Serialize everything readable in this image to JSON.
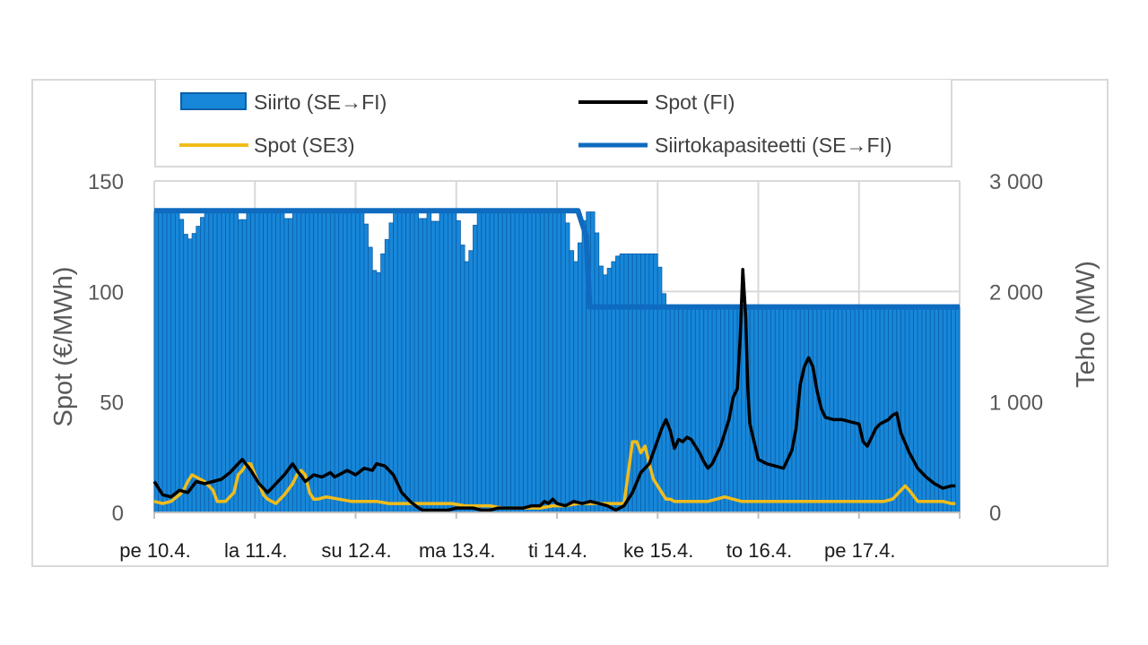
{
  "chart_data": {
    "type": "bar",
    "title": "",
    "ylabel_left": "Spot (€/MWh)",
    "ylabel_right": "Teho (MW)",
    "ylim_left": [
      0,
      150
    ],
    "ylim_right": [
      0,
      3000
    ],
    "yticks_left": [
      "0",
      "50",
      "100",
      "150"
    ],
    "yticks_right": [
      "0",
      "1 000",
      "2 000",
      "3 000"
    ],
    "xlim_hours": [
      0,
      192
    ],
    "x_categories": [
      "pe 10.4.",
      "la 11.4.",
      "su 12.4.",
      "ma 13.4.",
      "ti 14.4.",
      "ke 15.4.",
      "to 16.4.",
      "pe 17.4."
    ],
    "grid": true,
    "legend_position": "top",
    "colors": {
      "transfer_fill": "#1787d9",
      "transfer_edge": "#0b5fa8",
      "capacity": "#0e6bbf",
      "spot_fi": "#000000",
      "spot_se3": "#f2bc1a",
      "grid": "#d9d9d9"
    },
    "series": [
      {
        "name": "Siirto (SE→FI)",
        "axis": "right",
        "kind": "bar",
        "points": [
          [
            0,
            2720
          ],
          [
            6,
            2720
          ],
          [
            8,
            2450
          ],
          [
            10,
            2550
          ],
          [
            12,
            2710
          ],
          [
            20,
            2720
          ],
          [
            21,
            2580
          ],
          [
            22,
            2720
          ],
          [
            31,
            2720
          ],
          [
            32,
            2600
          ],
          [
            33,
            2720
          ],
          [
            50,
            2720
          ],
          [
            51,
            2500
          ],
          [
            52,
            2300
          ],
          [
            53,
            2080
          ],
          [
            54,
            2260
          ],
          [
            55,
            2420
          ],
          [
            56,
            2520
          ],
          [
            57,
            2720
          ],
          [
            63,
            2720
          ],
          [
            64,
            2600
          ],
          [
            65,
            2720
          ],
          [
            66,
            2720
          ],
          [
            67,
            2550
          ],
          [
            68,
            2720
          ],
          [
            72,
            2720
          ],
          [
            73,
            2560
          ],
          [
            74,
            2280
          ],
          [
            75,
            2260
          ],
          [
            76,
            2480
          ],
          [
            77,
            2720
          ],
          [
            98,
            2720
          ],
          [
            99,
            2520
          ],
          [
            100,
            2220
          ],
          [
            101,
            2320
          ],
          [
            102,
            2560
          ],
          [
            103,
            2720
          ],
          [
            105,
            2720
          ],
          [
            106,
            2340
          ],
          [
            107,
            2120
          ],
          [
            110,
            2300
          ],
          [
            111,
            2340
          ],
          [
            120,
            2340
          ],
          [
            122,
            1860
          ],
          [
            192,
            1860
          ]
        ]
      },
      {
        "name": "Siirtokapasiteetti (SE→FI)",
        "axis": "right",
        "kind": "line",
        "points": [
          [
            0,
            2730
          ],
          [
            101,
            2730
          ],
          [
            103,
            2500
          ],
          [
            103.8,
            1860
          ],
          [
            192,
            1860
          ]
        ]
      },
      {
        "name": "Spot (FI)",
        "axis": "left",
        "kind": "line",
        "points": [
          [
            0,
            14
          ],
          [
            2,
            8
          ],
          [
            4,
            7
          ],
          [
            6,
            10
          ],
          [
            8,
            9
          ],
          [
            10,
            14
          ],
          [
            12,
            13
          ],
          [
            14,
            14
          ],
          [
            16,
            15
          ],
          [
            18,
            18
          ],
          [
            20,
            22
          ],
          [
            21,
            24
          ],
          [
            23,
            19
          ],
          [
            25,
            13
          ],
          [
            27,
            9
          ],
          [
            29,
            13
          ],
          [
            31,
            17
          ],
          [
            33,
            22
          ],
          [
            34,
            19
          ],
          [
            36,
            14
          ],
          [
            38,
            17
          ],
          [
            40,
            16
          ],
          [
            42,
            18
          ],
          [
            43,
            16
          ],
          [
            44,
            17
          ],
          [
            46,
            19
          ],
          [
            48,
            17
          ],
          [
            50,
            20
          ],
          [
            52,
            19
          ],
          [
            53,
            22
          ],
          [
            55,
            21
          ],
          [
            57,
            17
          ],
          [
            58,
            13
          ],
          [
            59,
            9
          ],
          [
            61,
            5
          ],
          [
            63,
            2
          ],
          [
            64,
            1
          ],
          [
            66,
            1
          ],
          [
            68,
            1
          ],
          [
            70,
            1
          ],
          [
            72,
            2
          ],
          [
            74,
            2
          ],
          [
            76,
            2
          ],
          [
            78,
            1
          ],
          [
            80,
            1
          ],
          [
            82,
            2
          ],
          [
            84,
            2
          ],
          [
            86,
            2
          ],
          [
            88,
            2
          ],
          [
            90,
            3
          ],
          [
            92,
            3
          ],
          [
            93,
            5
          ],
          [
            94,
            4
          ],
          [
            95,
            6
          ],
          [
            96,
            4
          ],
          [
            98,
            3
          ],
          [
            100,
            5
          ],
          [
            102,
            4
          ],
          [
            104,
            5
          ],
          [
            106,
            4
          ],
          [
            108,
            3
          ],
          [
            110,
            1
          ],
          [
            112,
            3
          ],
          [
            114,
            9
          ],
          [
            116,
            18
          ],
          [
            118,
            22
          ],
          [
            121,
            38
          ],
          [
            122,
            42
          ],
          [
            123,
            37
          ],
          [
            124,
            29
          ],
          [
            125,
            33
          ],
          [
            126,
            32
          ],
          [
            127,
            34
          ],
          [
            128,
            33
          ],
          [
            129,
            30
          ],
          [
            130,
            27
          ],
          [
            131,
            23
          ],
          [
            132,
            20
          ],
          [
            133,
            22
          ],
          [
            135,
            30
          ],
          [
            137,
            42
          ],
          [
            138,
            52
          ],
          [
            139,
            56
          ],
          [
            139.7,
            80
          ],
          [
            140.3,
            110
          ],
          [
            141,
            88
          ],
          [
            141.5,
            56
          ],
          [
            142,
            40
          ],
          [
            143,
            32
          ],
          [
            144,
            24
          ],
          [
            146,
            22
          ],
          [
            148,
            21
          ],
          [
            150,
            20
          ],
          [
            152,
            28
          ],
          [
            153,
            38
          ],
          [
            154,
            58
          ],
          [
            155,
            66
          ],
          [
            156,
            70
          ],
          [
            157,
            66
          ],
          [
            158,
            55
          ],
          [
            159,
            47
          ],
          [
            160,
            43
          ],
          [
            162,
            42
          ],
          [
            164,
            42
          ],
          [
            166,
            41
          ],
          [
            168,
            40
          ],
          [
            169,
            32
          ],
          [
            170,
            30
          ],
          [
            171,
            34
          ],
          [
            172,
            38
          ],
          [
            173,
            40
          ],
          [
            175,
            42
          ],
          [
            176,
            44
          ],
          [
            177,
            45
          ],
          [
            178,
            36
          ],
          [
            180,
            27
          ],
          [
            182,
            20
          ],
          [
            184,
            16
          ],
          [
            186,
            13
          ],
          [
            188,
            11
          ],
          [
            190,
            12
          ],
          [
            191,
            12
          ]
        ]
      },
      {
        "name": "Spot (SE3)",
        "axis": "left",
        "kind": "line",
        "points": [
          [
            0,
            5
          ],
          [
            2,
            4
          ],
          [
            4,
            5
          ],
          [
            6,
            8
          ],
          [
            7,
            10
          ],
          [
            8,
            14
          ],
          [
            9,
            17
          ],
          [
            10,
            16
          ],
          [
            12,
            14
          ],
          [
            14,
            10
          ],
          [
            15,
            5
          ],
          [
            17,
            5
          ],
          [
            19,
            9
          ],
          [
            20,
            17
          ],
          [
            21,
            19
          ],
          [
            22,
            22
          ],
          [
            23,
            22
          ],
          [
            24,
            17
          ],
          [
            25,
            13
          ],
          [
            26,
            8
          ],
          [
            27,
            6
          ],
          [
            28,
            5
          ],
          [
            29,
            4
          ],
          [
            31,
            8
          ],
          [
            33,
            13
          ],
          [
            34,
            17
          ],
          [
            35,
            19
          ],
          [
            36,
            17
          ],
          [
            37,
            9
          ],
          [
            38,
            6
          ],
          [
            39,
            6
          ],
          [
            41,
            7
          ],
          [
            44,
            6
          ],
          [
            47,
            5
          ],
          [
            50,
            5
          ],
          [
            53,
            5
          ],
          [
            56,
            4
          ],
          [
            59,
            4
          ],
          [
            62,
            4
          ],
          [
            65,
            4
          ],
          [
            68,
            4
          ],
          [
            71,
            4
          ],
          [
            74,
            3
          ],
          [
            77,
            3
          ],
          [
            80,
            3
          ],
          [
            83,
            2
          ],
          [
            86,
            2
          ],
          [
            89,
            2
          ],
          [
            92,
            2
          ],
          [
            95,
            3
          ],
          [
            98,
            3
          ],
          [
            101,
            4
          ],
          [
            104,
            4
          ],
          [
            107,
            4
          ],
          [
            110,
            4
          ],
          [
            112,
            4
          ],
          [
            113,
            18
          ],
          [
            114,
            32
          ],
          [
            115,
            32
          ],
          [
            116,
            27
          ],
          [
            117,
            30
          ],
          [
            118,
            22
          ],
          [
            119,
            15
          ],
          [
            120,
            12
          ],
          [
            121,
            9
          ],
          [
            122,
            6
          ],
          [
            123,
            6
          ],
          [
            124,
            5
          ],
          [
            126,
            5
          ],
          [
            128,
            5
          ],
          [
            130,
            5
          ],
          [
            132,
            5
          ],
          [
            134,
            6
          ],
          [
            136,
            7
          ],
          [
            138,
            6
          ],
          [
            140,
            5
          ],
          [
            142,
            5
          ],
          [
            144,
            5
          ],
          [
            146,
            5
          ],
          [
            148,
            5
          ],
          [
            150,
            5
          ],
          [
            152,
            5
          ],
          [
            154,
            5
          ],
          [
            156,
            5
          ],
          [
            158,
            5
          ],
          [
            160,
            5
          ],
          [
            162,
            5
          ],
          [
            164,
            5
          ],
          [
            166,
            5
          ],
          [
            168,
            5
          ],
          [
            170,
            5
          ],
          [
            172,
            5
          ],
          [
            174,
            5
          ],
          [
            176,
            6
          ],
          [
            178,
            10
          ],
          [
            179,
            12
          ],
          [
            180,
            10
          ],
          [
            182,
            5
          ],
          [
            184,
            5
          ],
          [
            186,
            5
          ],
          [
            188,
            5
          ],
          [
            190,
            4
          ],
          [
            191,
            4
          ]
        ]
      }
    ]
  }
}
